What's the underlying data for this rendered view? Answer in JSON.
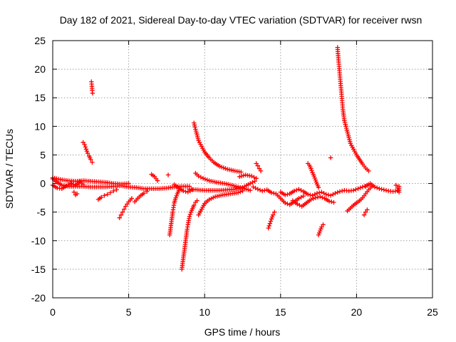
{
  "chart_data": {
    "type": "scatter",
    "title": "Day 182 of 2021, Sidereal Day-to-day VTEC variation (SDTVAR) for receiver rwsn",
    "xlabel": "GPS time / hours",
    "ylabel": "SDTVAR / TECUs",
    "xlim": [
      0,
      25
    ],
    "ylim": [
      -20,
      25
    ],
    "xticks": [
      0,
      5,
      10,
      15,
      20,
      25
    ],
    "yticks": [
      -20,
      -15,
      -10,
      -5,
      0,
      5,
      10,
      15,
      20,
      25
    ],
    "grid": true,
    "marker": "+",
    "color": "#ff0000",
    "series": [
      {
        "name": "base_0_9",
        "points": [
          [
            0.0,
            0.8
          ],
          [
            0.3,
            0.2
          ],
          [
            0.6,
            -0.3
          ],
          [
            1.0,
            -0.5
          ],
          [
            1.5,
            -0.5
          ],
          [
            2.0,
            -0.5
          ],
          [
            2.5,
            -0.6
          ],
          [
            3.0,
            -0.6
          ],
          [
            3.5,
            -0.6
          ],
          [
            4.0,
            -0.5
          ],
          [
            4.5,
            -0.4
          ],
          [
            5.0,
            -0.6
          ],
          [
            5.5,
            -0.7
          ],
          [
            6.0,
            -0.9
          ],
          [
            6.5,
            -0.9
          ],
          [
            7.0,
            -0.9
          ],
          [
            7.5,
            -0.8
          ],
          [
            8.0,
            -0.6
          ],
          [
            8.5,
            -0.5
          ],
          [
            9.0,
            -0.5
          ]
        ]
      },
      {
        "name": "base_0_9_upper",
        "points": [
          [
            0.0,
            1.0
          ],
          [
            0.5,
            0.7
          ],
          [
            1.0,
            0.5
          ],
          [
            1.5,
            0.4
          ],
          [
            2.0,
            0.5
          ],
          [
            2.5,
            0.4
          ],
          [
            3.0,
            0.3
          ],
          [
            3.5,
            0.2
          ],
          [
            4.0,
            0.0
          ],
          [
            4.5,
            -0.1
          ],
          [
            5.0,
            0.0
          ]
        ]
      },
      {
        "name": "band_0_2",
        "points": [
          [
            0.0,
            -0.3
          ],
          [
            0.3,
            -0.8
          ],
          [
            0.6,
            -0.9
          ],
          [
            0.9,
            -0.4
          ],
          [
            1.2,
            0.0
          ],
          [
            1.5,
            -0.3
          ],
          [
            1.8,
            0.3
          ],
          [
            2.0,
            -0.2
          ]
        ]
      },
      {
        "name": "dip_1.5",
        "points": [
          [
            1.4,
            -1.5
          ],
          [
            1.5,
            -2.0
          ],
          [
            1.6,
            -1.8
          ]
        ]
      },
      {
        "name": "arc_2.0",
        "points": [
          [
            2.0,
            7.2
          ],
          [
            2.1,
            6.8
          ],
          [
            2.2,
            6.0
          ],
          [
            2.3,
            5.3
          ],
          [
            2.4,
            4.8
          ],
          [
            2.5,
            4.2
          ],
          [
            2.6,
            3.7
          ]
        ]
      },
      {
        "name": "spike_2.6",
        "points": [
          [
            2.55,
            17.8
          ],
          [
            2.58,
            17.0
          ],
          [
            2.6,
            16.3
          ],
          [
            2.62,
            15.8
          ]
        ]
      },
      {
        "name": "dip_3.0",
        "points": [
          [
            3.0,
            -2.8
          ],
          [
            3.2,
            -2.4
          ],
          [
            3.4,
            -2.1
          ],
          [
            3.6,
            -1.9
          ],
          [
            3.8,
            -1.6
          ],
          [
            4.0,
            -1.3
          ],
          [
            4.2,
            -1.1
          ]
        ]
      },
      {
        "name": "arc_4.5",
        "points": [
          [
            4.4,
            -6.0
          ],
          [
            4.5,
            -5.5
          ],
          [
            4.6,
            -5.0
          ],
          [
            4.7,
            -4.5
          ],
          [
            4.8,
            -4.0
          ],
          [
            4.9,
            -3.6
          ],
          [
            5.0,
            -3.2
          ],
          [
            5.1,
            -2.9
          ],
          [
            5.2,
            -2.6
          ]
        ]
      },
      {
        "name": "rise_5.4",
        "points": [
          [
            5.4,
            -3.2
          ],
          [
            5.6,
            -2.6
          ],
          [
            5.8,
            -2.1
          ],
          [
            6.0,
            -1.7
          ],
          [
            6.2,
            -1.4
          ]
        ]
      },
      {
        "name": "bump_6.5",
        "points": [
          [
            6.5,
            1.6
          ],
          [
            6.7,
            1.2
          ],
          [
            6.9,
            0.5
          ]
        ]
      },
      {
        "name": "drop_7.6",
        "points": [
          [
            7.6,
            1.5
          ]
        ]
      },
      {
        "name": "rise_7.7",
        "points": [
          [
            7.7,
            -9.0
          ],
          [
            7.75,
            -8.0
          ],
          [
            7.8,
            -7.0
          ],
          [
            7.85,
            -6.0
          ],
          [
            7.9,
            -5.0
          ],
          [
            7.95,
            -4.2
          ],
          [
            8.0,
            -3.4
          ],
          [
            8.1,
            -2.5
          ],
          [
            8.2,
            -1.8
          ],
          [
            8.3,
            -1.2
          ]
        ]
      },
      {
        "name": "neg_spike_8.5",
        "points": [
          [
            8.5,
            -15.0
          ],
          [
            8.55,
            -14.0
          ],
          [
            8.6,
            -13.0
          ],
          [
            8.65,
            -12.0
          ],
          [
            8.7,
            -11.0
          ],
          [
            8.75,
            -10.0
          ],
          [
            8.8,
            -9.0
          ],
          [
            8.85,
            -8.0
          ],
          [
            8.9,
            -7.2
          ],
          [
            8.95,
            -6.5
          ],
          [
            9.0,
            -5.8
          ],
          [
            9.1,
            -5.0
          ],
          [
            9.2,
            -4.4
          ],
          [
            9.3,
            -3.8
          ],
          [
            9.4,
            -3.3
          ],
          [
            9.5,
            -3.0
          ]
        ]
      },
      {
        "name": "rise_9.6",
        "points": [
          [
            9.6,
            -5.5
          ],
          [
            9.8,
            -4.5
          ],
          [
            10.0,
            -3.5
          ],
          [
            10.3,
            -2.8
          ],
          [
            10.7,
            -2.3
          ],
          [
            11.2,
            -2.0
          ],
          [
            11.7,
            -1.8
          ],
          [
            12.2,
            -1.6
          ],
          [
            12.5,
            -1.3
          ]
        ]
      },
      {
        "name": "arc_9.3",
        "points": [
          [
            9.3,
            10.6
          ],
          [
            9.4,
            9.5
          ],
          [
            9.5,
            8.5
          ],
          [
            9.6,
            7.5
          ],
          [
            9.8,
            6.5
          ],
          [
            10.0,
            5.5
          ],
          [
            10.3,
            4.5
          ],
          [
            10.6,
            3.7
          ],
          [
            11.0,
            3.0
          ],
          [
            11.5,
            2.5
          ],
          [
            12.0,
            2.2
          ],
          [
            12.4,
            2.0
          ]
        ]
      },
      {
        "name": "arc_9.4_lower",
        "points": [
          [
            9.4,
            1.8
          ],
          [
            9.6,
            1.3
          ],
          [
            9.9,
            0.9
          ],
          [
            10.3,
            0.5
          ],
          [
            10.8,
            0.2
          ],
          [
            11.3,
            0.0
          ],
          [
            11.8,
            -0.3
          ],
          [
            12.2,
            -0.6
          ],
          [
            12.6,
            -0.9
          ],
          [
            13.0,
            -1.2
          ]
        ]
      },
      {
        "name": "base_9_13",
        "points": [
          [
            9.0,
            -1.0
          ],
          [
            9.5,
            -1.1
          ],
          [
            10.0,
            -1.2
          ],
          [
            10.5,
            -1.2
          ],
          [
            11.0,
            -1.2
          ],
          [
            11.5,
            -1.1
          ],
          [
            12.0,
            -1.0
          ],
          [
            12.5,
            -0.7
          ],
          [
            13.0,
            0.0
          ],
          [
            13.3,
            0.4
          ]
        ]
      },
      {
        "name": "dip_8_9",
        "points": [
          [
            8.0,
            -0.2
          ],
          [
            8.3,
            -0.8
          ],
          [
            8.6,
            -1.3
          ],
          [
            8.9,
            -1.5
          ],
          [
            9.2,
            -1.1
          ]
        ]
      },
      {
        "name": "bump_12.5",
        "points": [
          [
            12.3,
            1.2
          ],
          [
            12.7,
            1.5
          ],
          [
            13.1,
            1.3
          ],
          [
            13.4,
            0.9
          ]
        ]
      },
      {
        "name": "arc_13.5",
        "points": [
          [
            13.4,
            3.5
          ],
          [
            13.5,
            3.1
          ],
          [
            13.6,
            2.6
          ],
          [
            13.7,
            2.2
          ]
        ]
      },
      {
        "name": "wave_13.5_14.5",
        "points": [
          [
            13.2,
            -0.6
          ],
          [
            13.5,
            -1.0
          ],
          [
            13.8,
            -1.3
          ],
          [
            14.1,
            -1.1
          ],
          [
            14.4,
            -1.6
          ],
          [
            14.7,
            -1.8
          ],
          [
            15.0,
            -2.6
          ],
          [
            15.3,
            -3.4
          ],
          [
            15.6,
            -3.7
          ],
          [
            15.9,
            -3.2
          ],
          [
            16.2,
            -2.6
          ],
          [
            16.5,
            -2.2
          ]
        ]
      },
      {
        "name": "arc_14.2",
        "points": [
          [
            14.2,
            -7.8
          ],
          [
            14.3,
            -7.0
          ],
          [
            14.4,
            -6.2
          ],
          [
            14.5,
            -5.5
          ],
          [
            14.6,
            -5.0
          ]
        ]
      },
      {
        "name": "cluster_15_19",
        "points": [
          [
            15.0,
            -1.5
          ],
          [
            15.3,
            -2.0
          ],
          [
            15.6,
            -1.8
          ],
          [
            15.9,
            -1.3
          ],
          [
            16.2,
            -1.0
          ],
          [
            16.5,
            -1.4
          ],
          [
            16.8,
            -1.9
          ],
          [
            17.1,
            -2.1
          ],
          [
            17.4,
            -1.7
          ],
          [
            17.7,
            -1.5
          ],
          [
            18.0,
            -1.9
          ],
          [
            18.3,
            -2.1
          ],
          [
            18.6,
            -1.7
          ],
          [
            18.9,
            -1.4
          ],
          [
            19.2,
            -1.2
          ],
          [
            19.5,
            -1.3
          ],
          [
            19.8,
            -1.2
          ],
          [
            20.1,
            -0.9
          ],
          [
            20.4,
            -0.6
          ],
          [
            20.7,
            -0.3
          ]
        ]
      },
      {
        "name": "dip_16_18",
        "points": [
          [
            15.8,
            -3.0
          ],
          [
            16.1,
            -3.6
          ],
          [
            16.4,
            -4.0
          ],
          [
            16.7,
            -3.4
          ],
          [
            17.0,
            -2.8
          ],
          [
            17.3,
            -2.5
          ],
          [
            17.6,
            -2.3
          ],
          [
            17.9,
            -2.6
          ],
          [
            18.2,
            -3.1
          ],
          [
            18.5,
            -3.3
          ]
        ]
      },
      {
        "name": "arc_16.8",
        "points": [
          [
            16.8,
            3.5
          ],
          [
            16.9,
            3.2
          ],
          [
            17.0,
            2.6
          ],
          [
            17.1,
            1.9
          ],
          [
            17.2,
            1.3
          ],
          [
            17.3,
            0.6
          ],
          [
            17.4,
            -0.1
          ],
          [
            17.5,
            -0.7
          ]
        ]
      },
      {
        "name": "arc_17.6",
        "points": [
          [
            17.5,
            -9.0
          ],
          [
            17.6,
            -8.3
          ],
          [
            17.7,
            -7.6
          ],
          [
            17.8,
            -7.2
          ]
        ]
      },
      {
        "name": "dot_18.3",
        "points": [
          [
            18.3,
            4.5
          ]
        ]
      },
      {
        "name": "spike_18.8",
        "points": [
          [
            18.75,
            23.8
          ],
          [
            18.8,
            22.0
          ],
          [
            18.85,
            20.5
          ],
          [
            18.9,
            19.0
          ],
          [
            18.95,
            17.5
          ],
          [
            19.0,
            16.0
          ],
          [
            19.05,
            14.5
          ],
          [
            19.1,
            13.0
          ],
          [
            19.15,
            12.0
          ],
          [
            19.2,
            11.0
          ],
          [
            19.3,
            10.0
          ],
          [
            19.4,
            9.0
          ],
          [
            19.5,
            8.0
          ],
          [
            19.6,
            7.0
          ],
          [
            19.8,
            6.0
          ],
          [
            20.0,
            5.0
          ],
          [
            20.2,
            4.2
          ],
          [
            20.4,
            3.4
          ],
          [
            20.6,
            2.7
          ],
          [
            20.8,
            2.2
          ]
        ]
      },
      {
        "name": "arc_19.5",
        "points": [
          [
            19.4,
            -4.8
          ],
          [
            19.6,
            -4.3
          ],
          [
            19.8,
            -3.8
          ],
          [
            20.0,
            -3.4
          ],
          [
            20.2,
            -3.0
          ],
          [
            20.4,
            -2.5
          ],
          [
            20.6,
            -1.8
          ],
          [
            20.8,
            -1.1
          ],
          [
            21.0,
            -0.5
          ]
        ]
      },
      {
        "name": "arc_20.6",
        "points": [
          [
            20.5,
            -5.5
          ],
          [
            20.6,
            -5.0
          ],
          [
            20.7,
            -4.6
          ]
        ]
      },
      {
        "name": "tail_20_22.8",
        "points": [
          [
            20.6,
            -0.5
          ],
          [
            20.9,
            0.0
          ],
          [
            21.2,
            -0.6
          ],
          [
            21.5,
            -0.9
          ],
          [
            21.8,
            -1.1
          ],
          [
            22.1,
            -1.3
          ],
          [
            22.4,
            -1.4
          ],
          [
            22.7,
            -1.3
          ]
        ]
      },
      {
        "name": "end_22.8",
        "points": [
          [
            22.6,
            -0.3
          ],
          [
            22.7,
            -0.8
          ],
          [
            22.8,
            -1.5
          ],
          [
            22.8,
            -0.5
          ]
        ]
      }
    ]
  }
}
